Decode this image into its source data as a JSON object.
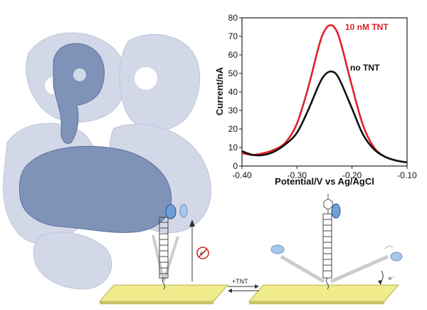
{
  "scheme": {
    "arrow_label": "+TNT",
    "electron_left": "e⁻",
    "electron_right": "e⁻"
  },
  "colors": {
    "protein_light": "#d3d8e8",
    "protein_dark": "#7f92b8",
    "gold_surface": "#f0ec8c",
    "tnt_curve": "#e0202a",
    "blank_curve": "#111111",
    "label_blue": "#6f9fd8"
  },
  "chart_data": {
    "type": "line",
    "xlabel": "Potential/V vs Ag/AgCl",
    "ylabel": "Current/nA",
    "xlim": [
      -0.4,
      -0.1
    ],
    "ylim": [
      0,
      80
    ],
    "xticks": [
      "-0.40",
      "-0.30",
      "-0.20",
      "-0.10"
    ],
    "yticks": [
      "0",
      "10",
      "20",
      "30",
      "40",
      "50",
      "60",
      "70",
      "80"
    ],
    "x": [
      -0.4,
      -0.38,
      -0.36,
      -0.34,
      -0.32,
      -0.3,
      -0.28,
      -0.26,
      -0.25,
      -0.24,
      -0.23,
      -0.22,
      -0.2,
      -0.18,
      -0.16,
      -0.14,
      -0.12,
      -0.1
    ],
    "series": [
      {
        "name": "10 nM TNT",
        "color": "#e0202a",
        "values": [
          7,
          6,
          7,
          9,
          13,
          23,
          42,
          65,
          73,
          76,
          74,
          66,
          43,
          22,
          10,
          5,
          3,
          2
        ]
      },
      {
        "name": "no TNT",
        "color": "#111111",
        "values": [
          8,
          6,
          6,
          8,
          12,
          18,
          30,
          44,
          49,
          51,
          50,
          45,
          31,
          17,
          9,
          5,
          3,
          2
        ]
      }
    ]
  }
}
